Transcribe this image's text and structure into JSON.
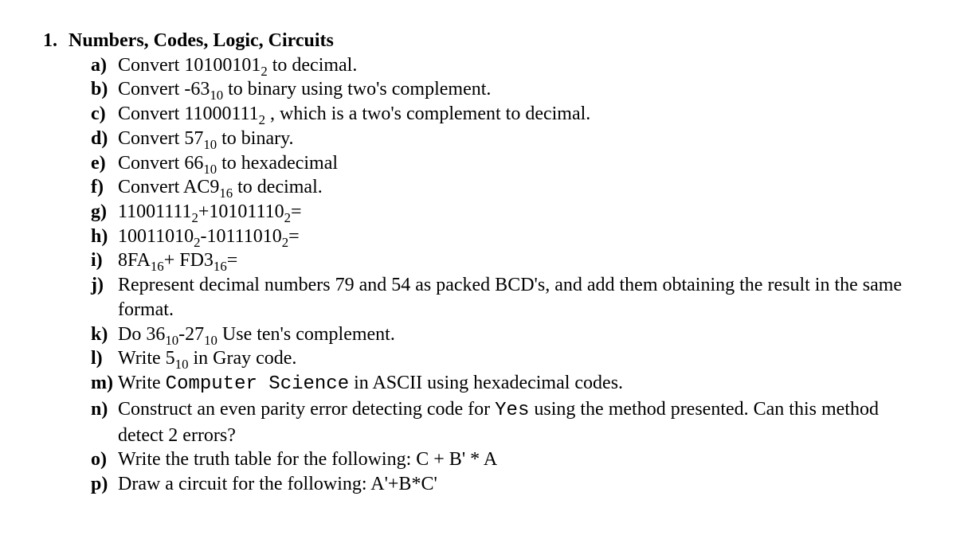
{
  "main": {
    "marker": "1.",
    "title": "Numbers, Codes, Logic, Circuits"
  },
  "items": {
    "a": {
      "marker": "a)",
      "pre": "Convert ",
      "num": "10100101",
      "sub": "2",
      "post": " to decimal."
    },
    "b": {
      "marker": "b)",
      "pre": "Convert ",
      "num": "-63",
      "sub": "10",
      "post": " to binary using two's complement."
    },
    "c": {
      "marker": "c)",
      "pre": "Convert ",
      "num": "11000111",
      "sub": "2",
      "post": " , which is a  two's complement to decimal."
    },
    "d": {
      "marker": "d)",
      "pre": "Convert ",
      "num": "57",
      "sub": "10",
      "post": " to binary."
    },
    "e": {
      "marker": "e)",
      "pre": "Convert ",
      "num": "66",
      "sub": "10",
      "post": " to hexadecimal"
    },
    "f": {
      "marker": "f)",
      "pre": "Convert  ",
      "num": "AC9",
      "sub": "16",
      "post": " to decimal."
    },
    "g": {
      "marker": "g)",
      "n1": "11001111",
      "s1": "2",
      "op": "+",
      "n2": "10101110",
      "s2": "2",
      "tail": "="
    },
    "h": {
      "marker": "h)",
      "n1": "10011010",
      "s1": "2",
      "op": "-",
      "n2": "10111010",
      "s2": "2",
      "tail": "="
    },
    "i": {
      "marker": "i)",
      "n1": "8FA",
      "s1": "16",
      "op": "+ ",
      "n2": "FD3",
      "s2": "16",
      "tail": "="
    },
    "j": {
      "marker": "j)",
      "text": "Represent decimal numbers 79 and 54 as packed BCD's, and add them obtaining the result in the same format."
    },
    "k": {
      "marker": "k)",
      "pre": "Do ",
      "n1": "36",
      "s1": "10",
      "op": "-",
      "n2": "27",
      "s2": "10",
      "post": " Use ten's complement."
    },
    "l": {
      "marker": "l)",
      "pre": "Write ",
      "num": "5",
      "sub": "10",
      "post": " in Gray code."
    },
    "m": {
      "marker": "m)",
      "pre": "Write ",
      "mono": "Computer Science",
      "post": "  in ASCII using hexadecimal codes."
    },
    "n": {
      "marker": "n)",
      "pre": "Construct an even parity error detecting code for  ",
      "mono": "Yes",
      "post": "   using the method presented. Can this method detect 2 errors?"
    },
    "o": {
      "marker": "o)",
      "text": "Write the truth table for the following: C + B'  * A"
    },
    "p": {
      "marker": "p)",
      "text": "Draw a circuit for the following: A'+B*C'"
    }
  }
}
